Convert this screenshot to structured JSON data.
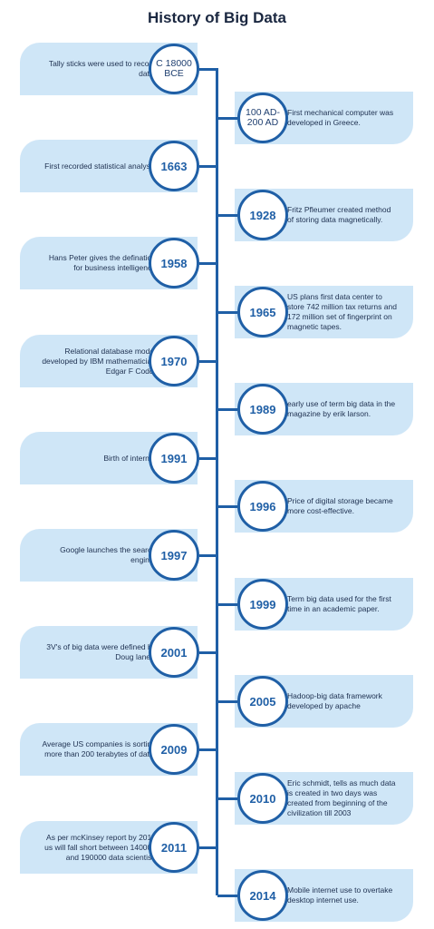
{
  "title": "History of Big Data",
  "events": [
    {
      "year": "C 18000 BCE",
      "text": "Tally sticks were used to record data.",
      "side": "left"
    },
    {
      "year": "100 AD-200 AD",
      "text": "First mechanical computer was developed in Greece.",
      "side": "right"
    },
    {
      "year": "1663",
      "text": "First recorded statistical analysis",
      "side": "left"
    },
    {
      "year": "1928",
      "text": "Fritz Pfleumer created method of storing data magnetically.",
      "side": "right"
    },
    {
      "year": "1958",
      "text": "Hans Peter gives the defination for business intelligence",
      "side": "left"
    },
    {
      "year": "1965",
      "text": "US plans first data center to store 742 million tax returns and 172 million set of fingerprint on magnetic tapes.",
      "side": "right"
    },
    {
      "year": "1970",
      "text": "Relational database model developed by IBM mathematician Edgar F Codd.",
      "side": "left"
    },
    {
      "year": "1989",
      "text": "early use of term big data in the magazine by erik larson.",
      "side": "right"
    },
    {
      "year": "1991",
      "text": "Birth of internet",
      "side": "left"
    },
    {
      "year": "1996",
      "text": "Price of digital storage became more cost-effective.",
      "side": "right"
    },
    {
      "year": "1997",
      "text": "Google launches the search engine.",
      "side": "left"
    },
    {
      "year": "1999",
      "text": "Term big data used for the first time in an academic paper.",
      "side": "right"
    },
    {
      "year": "2001",
      "text": "3V's of big data were defined by Doug laney.",
      "side": "left"
    },
    {
      "year": "2005",
      "text": "Hadoop-big data framework developed by apache",
      "side": "right"
    },
    {
      "year": "2009",
      "text": "Average US companies is sorting more than 200 terabytes of data.",
      "side": "left"
    },
    {
      "year": "2010",
      "text": "Eric schmidt, tells as much data is created in two days was created from beginning of the civilization till 2003",
      "side": "right"
    },
    {
      "year": "2011",
      "text": "As per mcKinsey report by 2018 us will fall short between 140000 and 190000 data scientist.",
      "side": "left"
    },
    {
      "year": "2014",
      "text": "Mobile internet use to overtake desktop internet use.",
      "side": "right"
    }
  ],
  "colors": {
    "accent": "#1f5fa6",
    "card": "#cfe6f7",
    "title": "#1a2740"
  }
}
